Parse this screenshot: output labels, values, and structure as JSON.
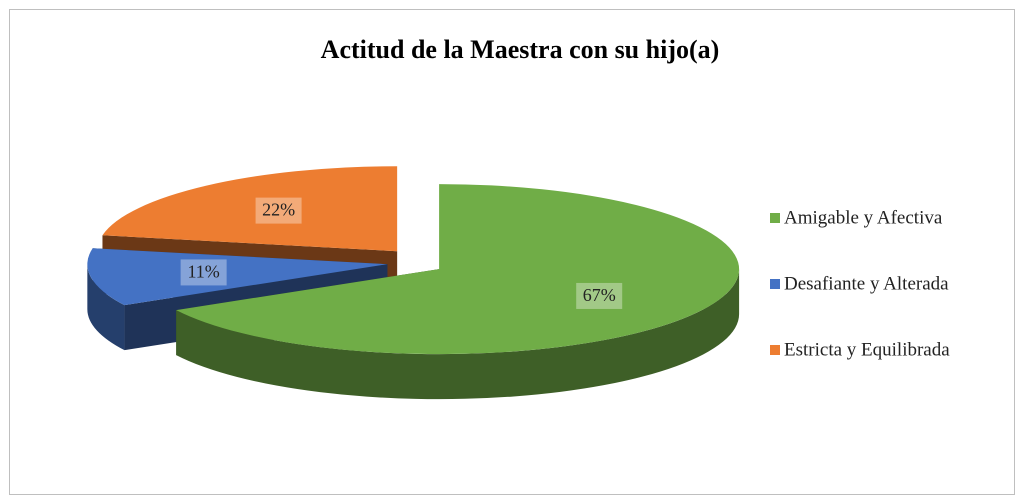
{
  "chart_data": {
    "type": "pie3d",
    "title": "Actitud de la Maestra con su hijo(a)",
    "categories": [
      "Amigable y Afectiva",
      "Desafiante y Alterada",
      "Estricta y Equilibrada"
    ],
    "values": [
      67,
      11,
      22
    ],
    "value_labels": [
      "67%",
      "11%",
      "22%"
    ],
    "colors": [
      "#70ad47",
      "#4472c4",
      "#ed7d31"
    ],
    "legend": "right"
  }
}
